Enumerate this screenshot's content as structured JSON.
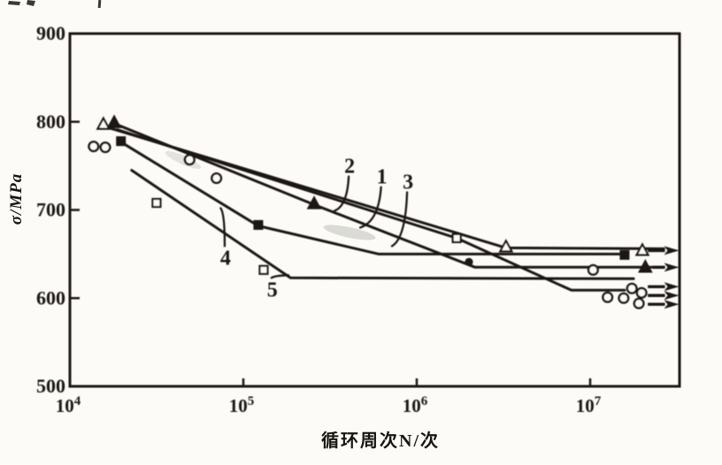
{
  "figure_colors": {
    "ink": "#1a1812",
    "paper": "#fcfbf8"
  },
  "chart_data": {
    "type": "line",
    "title": "",
    "xlabel": "循环周次N/次",
    "ylabel": "σ/MPa",
    "x_scale": "log",
    "xlim": [
      10000,
      33000000
    ],
    "ylim": [
      500,
      900
    ],
    "grid": false,
    "legend": "none",
    "x_ticks": [
      {
        "label": "10",
        "exp": "4",
        "value": 10000
      },
      {
        "label": "10",
        "exp": "5",
        "value": 100000
      },
      {
        "label": "10",
        "exp": "6",
        "value": 1000000
      },
      {
        "label": "10",
        "exp": "7",
        "value": 10000000
      }
    ],
    "y_ticks": [
      {
        "label": "900",
        "value": 900
      },
      {
        "label": "800",
        "value": 800
      },
      {
        "label": "700",
        "value": 700
      },
      {
        "label": "600",
        "value": 600
      },
      {
        "label": "500",
        "value": 500
      }
    ],
    "series": [
      {
        "name": "curve-1",
        "label": "1",
        "marker": "triangle-open",
        "line": [
          [
            15600,
            795
          ],
          [
            3270000,
            657
          ],
          [
            26600000,
            656
          ]
        ],
        "points": [
          [
            15600,
            797
          ],
          [
            3270000,
            658
          ]
        ]
      },
      {
        "name": "curve-2",
        "label": "2",
        "marker": "triangle-filled",
        "line": [
          [
            18000,
            798
          ],
          [
            256000,
            706
          ],
          [
            2170000,
            635
          ],
          [
            26600000,
            635
          ]
        ],
        "points": [
          [
            18000,
            799
          ],
          [
            256000,
            707
          ]
        ]
      },
      {
        "name": "curve-3",
        "label": "3",
        "marker": "circle-filled",
        "line": [
          [
            18800,
            791
          ],
          [
            1700000,
            668
          ],
          [
            7800000,
            609
          ],
          [
            15800000,
            609
          ]
        ],
        "points": [
          [
            2000000,
            641
          ]
        ]
      },
      {
        "name": "curve-4",
        "label": "4",
        "marker": "square-filled",
        "line": [
          [
            19700,
            777
          ],
          [
            122000,
            682
          ],
          [
            605000,
            650
          ],
          [
            15800000,
            650
          ]
        ],
        "points": [
          [
            19700,
            778
          ],
          [
            122000,
            683
          ],
          [
            15800000,
            649
          ]
        ]
      },
      {
        "name": "curve-5",
        "label": "5",
        "marker": "square-open",
        "line": [
          [
            22700,
            745
          ],
          [
            187000,
            623
          ],
          [
            17800000,
            622
          ]
        ],
        "points": [
          [
            31600,
            708
          ],
          [
            131000,
            632
          ],
          [
            1700000,
            668
          ]
        ]
      },
      {
        "name": "runout-scatter",
        "label": "",
        "marker": "circle-open",
        "line": [],
        "points": [
          [
            13700,
            772
          ],
          [
            16000,
            771
          ],
          [
            49000,
            757
          ],
          [
            70000,
            736
          ],
          [
            10400000,
            632
          ],
          [
            12600000,
            601
          ],
          [
            15600000,
            600
          ],
          [
            17400000,
            611
          ],
          [
            19800000,
            606
          ],
          [
            19100000,
            594
          ]
        ]
      }
    ],
    "runout_arrows": [
      {
        "sigma": 654,
        "marker": "triangle-open",
        "marker_n": 20000000,
        "from_n": 21500000,
        "to_n": 27000000
      },
      {
        "sigma": 635,
        "marker": "triangle-filled",
        "marker_n": 20800000,
        "from_n": 23000000,
        "to_n": 27000000
      },
      {
        "sigma": 613,
        "marker": "",
        "marker_n": 0,
        "from_n": 21500000,
        "to_n": 27000000
      },
      {
        "sigma": 603,
        "marker": "",
        "marker_n": 0,
        "from_n": 21500000,
        "to_n": 27000000
      },
      {
        "sigma": 593,
        "marker": "",
        "marker_n": 0,
        "from_n": 21500000,
        "to_n": 27000000
      }
    ],
    "annotations": [
      {
        "text": "1",
        "n": 630000,
        "sigma": 738,
        "tip_n": 472000,
        "tip_sigma": 680
      },
      {
        "text": "2",
        "n": 410000,
        "sigma": 750,
        "tip_n": 336000,
        "tip_sigma": 699
      },
      {
        "text": "3",
        "n": 890000,
        "sigma": 732,
        "tip_n": 720000,
        "tip_sigma": 659
      },
      {
        "text": "4",
        "n": 79000,
        "sigma": 646,
        "tip_n": 74000,
        "tip_sigma": 702
      },
      {
        "text": "5",
        "n": 147000,
        "sigma": 610,
        "tip_n": 182000,
        "tip_sigma": 626
      }
    ]
  }
}
